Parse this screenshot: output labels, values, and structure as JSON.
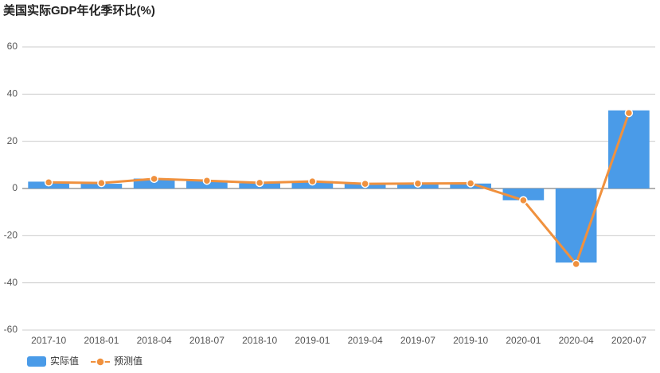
{
  "chart_data": {
    "type": "bar-line",
    "title": "美国实际GDP年化季环比(%)",
    "categories": [
      "2017-10",
      "2018-01",
      "2018-04",
      "2018-07",
      "2018-10",
      "2019-01",
      "2019-04",
      "2019-07",
      "2019-10",
      "2020-01",
      "2020-04",
      "2020-07"
    ],
    "series": [
      {
        "name": "实际值",
        "type": "bar",
        "color": "#4a9be8",
        "values": [
          2.9,
          2.0,
          4.2,
          3.4,
          2.2,
          3.1,
          2.0,
          2.1,
          2.1,
          -5.0,
          -31.4,
          33.1
        ]
      },
      {
        "name": "预测值",
        "type": "line",
        "color": "#f0913e",
        "values": [
          2.6,
          2.3,
          4.1,
          3.3,
          2.4,
          3.0,
          2.0,
          2.1,
          2.2,
          -5.0,
          -32.0,
          32.0
        ]
      }
    ],
    "ylim": [
      -60,
      60
    ],
    "yticks": [
      -60,
      -40,
      -20,
      0,
      20,
      40,
      60
    ],
    "grid": true
  }
}
